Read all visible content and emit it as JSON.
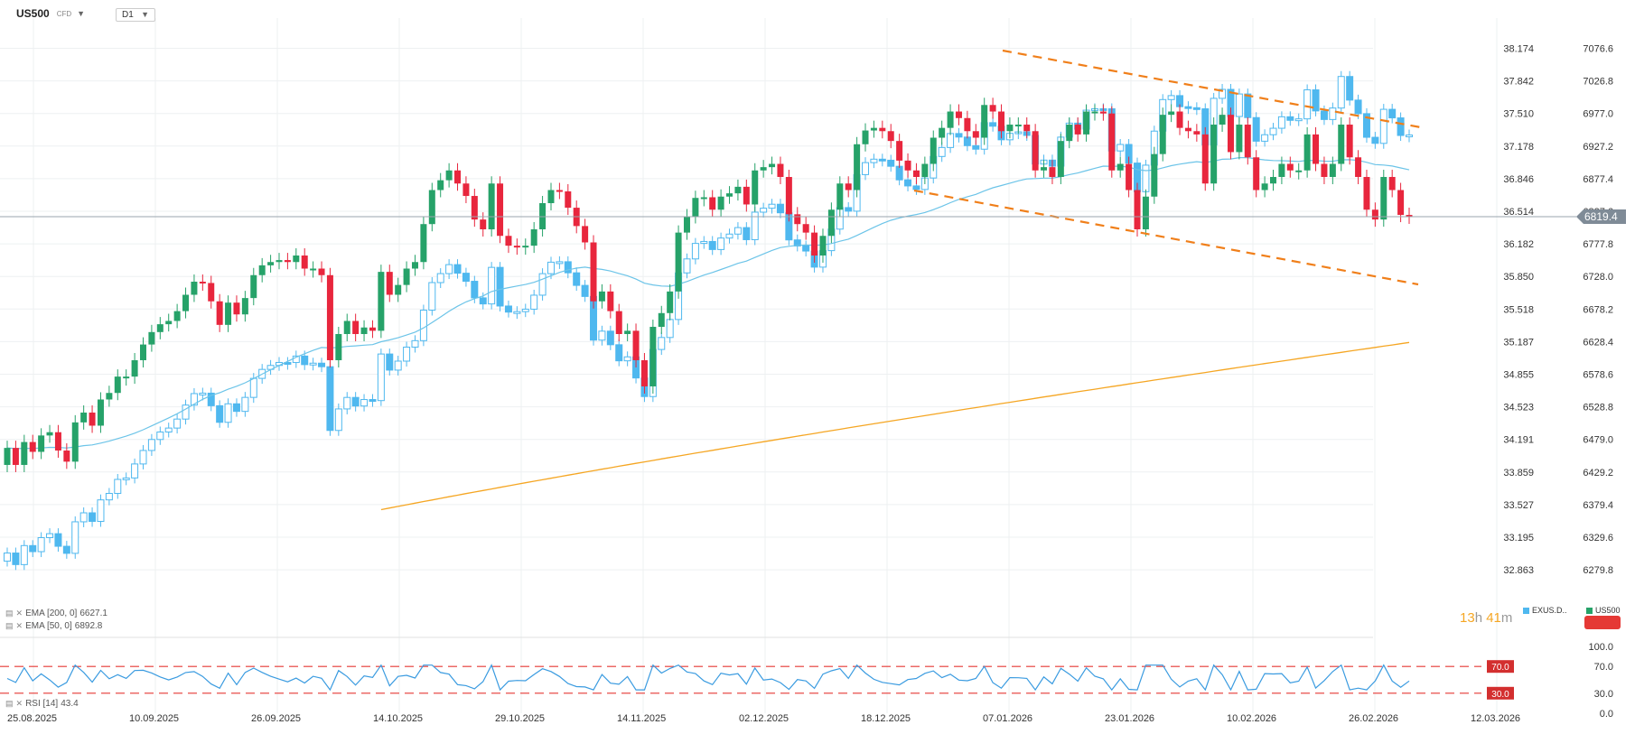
{
  "header": {
    "symbol": "US500",
    "instrument_type": "CFD",
    "timeframe": "D1"
  },
  "indicators": {
    "ema200_label": "EMA [200, 0]",
    "ema200_value": "6627.1",
    "ema50_label": "EMA [50, 0]",
    "ema50_value": "6892.8",
    "rsi_label": "RSI [14]",
    "rsi_value": "43.4"
  },
  "timer": {
    "hours": "13",
    "h_unit": "h",
    "minutes": "41",
    "m_unit": "m"
  },
  "legend": {
    "series1": "EXUS.D..",
    "series2": "US500"
  },
  "colors": {
    "bull": "#26a269",
    "bear": "#e8263d",
    "compare": "#4fb8ef",
    "ema50": "#6cc4e8",
    "ema200": "#f5a623",
    "channel": "#f07f1a",
    "rsi": "#3a9be0",
    "rsi_levels": "#e53935",
    "price_tag": "#7f8b97",
    "level_tag": "#d32f2f"
  },
  "chart_data": {
    "type": "candlestick",
    "x_ticks": [
      "25.08.2025",
      "10.09.2025",
      "26.09.2025",
      "14.10.2025",
      "29.10.2025",
      "14.11.2025",
      "02.12.2025",
      "18.12.2025",
      "07.01.2026",
      "23.01.2026",
      "10.02.2026",
      "26.02.2026",
      "12.03.2026"
    ],
    "right_axis": [
      "7076.6",
      "7026.8",
      "6977.0",
      "6927.2",
      "6877.4",
      "6827.6",
      "6777.8",
      "6728.0",
      "6678.2",
      "6628.4",
      "6578.6",
      "6528.8",
      "6479.0",
      "6429.2",
      "6379.4",
      "6329.6",
      "6279.8"
    ],
    "left_axis": [
      "38.174",
      "37.842",
      "37.510",
      "37.178",
      "36.846",
      "36.514",
      "36.182",
      "35.850",
      "35.518",
      "35.187",
      "34.855",
      "34.523",
      "34.191",
      "33.859",
      "33.527",
      "33.195",
      "32.863"
    ],
    "current_price": "6819.4",
    "rsi_axis": [
      "100.0",
      "70.0",
      "30.0",
      "0.0"
    ],
    "rsi_levels": [
      "70.0",
      "30.0"
    ],
    "us500_close": [
      6466,
      6440,
      6475,
      6460,
      6485,
      6490,
      6462,
      6445,
      6505,
      6520,
      6500,
      6540,
      6550,
      6575,
      6575,
      6600,
      6624,
      6643,
      6655,
      6660,
      6675,
      6700,
      6720,
      6718,
      6690,
      6654,
      6688,
      6670,
      6695,
      6730,
      6745,
      6750,
      6753,
      6750,
      6760,
      6740,
      6740,
      6730,
      6600,
      6640,
      6660,
      6640,
      6650,
      6645,
      6735,
      6700,
      6715,
      6740,
      6750,
      6808,
      6860,
      6875,
      6890,
      6870,
      6851,
      6815,
      6800,
      6870,
      6790,
      6775,
      6773,
      6775,
      6800,
      6840,
      6860,
      6858,
      6833,
      6805,
      6780,
      6690,
      6705,
      6675,
      6640,
      6645,
      6600,
      6560,
      6651,
      6672,
      6705,
      6795,
      6820,
      6848,
      6849,
      6830,
      6850,
      6855,
      6865,
      6838,
      6890,
      6895,
      6900,
      6880,
      6823,
      6808,
      6795,
      6760,
      6790,
      6830,
      6870,
      6860,
      6930,
      6951,
      6955,
      6950,
      6935,
      6905,
      6890,
      6880,
      6900,
      6940,
      6955,
      6980,
      6970,
      6950,
      6940,
      6990,
      6980,
      6950,
      6960,
      6960,
      6950,
      6890,
      6895,
      6880,
      6935,
      6960,
      6945,
      6980,
      6980,
      6977,
      6890,
      6900,
      6860,
      6800,
      6850,
      6915,
      6975,
      6980,
      6955,
      6950,
      6945,
      6870,
      6960,
      6975,
      6918,
      6960,
      6910,
      6860,
      6870,
      6880,
      6900,
      6890,
      6890,
      6945,
      6900,
      6880,
      6900,
      6960,
      6910,
      6880,
      6830,
      6815,
      6880,
      6860,
      6822,
      6820
    ]
  }
}
